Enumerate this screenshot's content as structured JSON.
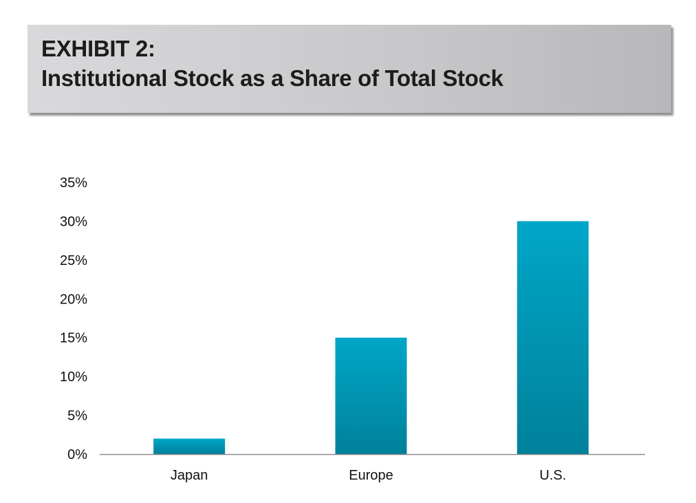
{
  "header": {
    "exhibit": "EXHIBIT 2:",
    "title": "Institutional Stock as a Share of Total Stock"
  },
  "chart_data": {
    "type": "bar",
    "title": "EXHIBIT 2: Institutional Stock as a Share of Total Stock",
    "xlabel": "",
    "ylabel": "",
    "categories": [
      "Japan",
      "Europe",
      "U.S."
    ],
    "values": [
      2,
      15,
      30
    ],
    "ylim": [
      0,
      35
    ],
    "yticks": [
      "0%",
      "5%",
      "10%",
      "15%",
      "20%",
      "25%",
      "30%",
      "35%"
    ],
    "grid": false,
    "legend": "none",
    "bar_color_top": "#00a6c8",
    "bar_color_bottom": "#00819a"
  }
}
